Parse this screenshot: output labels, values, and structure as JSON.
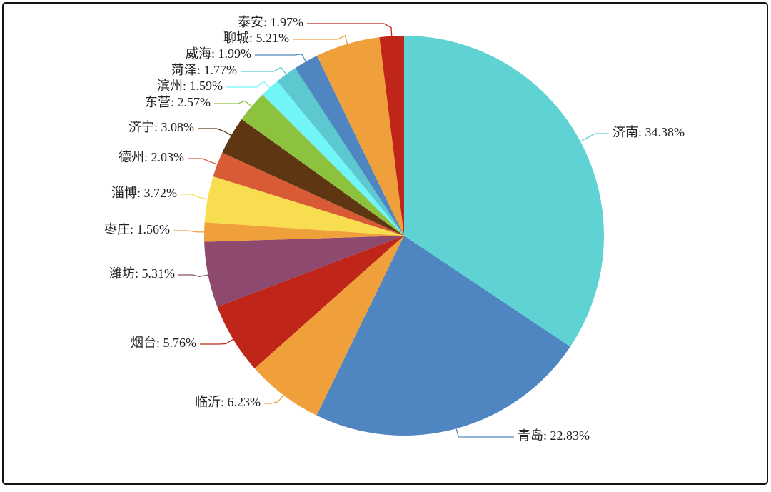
{
  "chart_data": {
    "type": "pie",
    "values": [
      34.38,
      22.83,
      6.23,
      5.76,
      5.31,
      1.56,
      3.72,
      2.03,
      3.08,
      2.57,
      1.59,
      1.77,
      1.99,
      5.21,
      1.97
    ],
    "value_labels": [
      "济南: 34.38%",
      "青岛: 22.83%",
      "临沂: 6.23%",
      "烟台: 5.76%",
      "潍坊: 5.31%",
      "枣庄: 1.56%",
      "淄博: 3.72%",
      "德州: 2.03%",
      "济宁: 3.08%",
      "东营: 2.57%",
      "滨州: 1.59%",
      "菏泽: 1.77%",
      "威海: 1.99%",
      "聊城: 5.21%",
      "泰安: 1.97%"
    ],
    "colors": [
      "#5fd3d3",
      "#4f86c2",
      "#f0a03a",
      "#bf2519",
      "#8e4a6e",
      "#f0a03a",
      "#f9dd50",
      "#d95b35",
      "#5e3612",
      "#8dc23e",
      "#71f5f8",
      "#5cc9d0",
      "#4f86c2",
      "#f0a03a",
      "#bf2519"
    ]
  }
}
